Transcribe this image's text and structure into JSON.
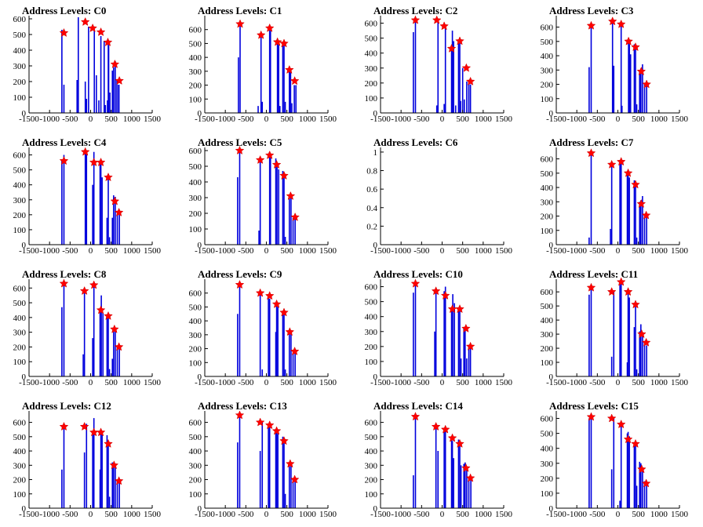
{
  "chart_data": [
    {
      "type": "bar",
      "title": "Address Levels: C0",
      "xlim": [
        -1500,
        1500
      ],
      "xticks": [
        -1500,
        -1000,
        -500,
        0,
        500,
        1000,
        1500
      ],
      "ylim": [
        0,
        620
      ],
      "yticks": [
        0,
        100,
        200,
        300,
        400,
        500,
        600
      ],
      "x": [
        -700,
        -650,
        -330,
        -300,
        -130,
        -100,
        -50,
        90,
        140,
        200,
        250,
        330,
        360,
        410,
        430,
        440,
        470,
        530,
        560,
        600,
        640,
        680,
        690
      ],
      "values": [
        530,
        180,
        210,
        610,
        200,
        90,
        550,
        530,
        240,
        80,
        490,
        460,
        50,
        80,
        460,
        430,
        130,
        270,
        290,
        330,
        210,
        180,
        180
      ],
      "stars": {
        "x": [
          -650,
          -130,
          50,
          250,
          420,
          590,
          700
        ],
        "y": [
          510,
          580,
          540,
          515,
          450,
          310,
          205
        ]
      }
    },
    {
      "type": "bar",
      "title": "Address Levels: C1",
      "xlim": [
        -1500,
        1500
      ],
      "xticks": [
        -1500,
        -1000,
        -500,
        0,
        500,
        1000,
        1500
      ],
      "ylim": [
        0,
        700
      ],
      "yticks": [
        0,
        100,
        200,
        300,
        400,
        500,
        600
      ],
      "x": [
        -680,
        -640,
        -200,
        -130,
        -100,
        80,
        100,
        270,
        300,
        330,
        400,
        430,
        460,
        560,
        590,
        620,
        680,
        720
      ],
      "values": [
        400,
        640,
        50,
        560,
        80,
        610,
        590,
        510,
        490,
        50,
        500,
        490,
        80,
        310,
        320,
        70,
        200,
        200
      ],
      "stars": {
        "x": [
          -640,
          -130,
          80,
          270,
          430,
          560,
          690
        ],
        "y": [
          640,
          560,
          610,
          510,
          500,
          310,
          230
        ]
      }
    },
    {
      "type": "bar",
      "title": "Address Levels: C2",
      "xlim": [
        -1500,
        1500
      ],
      "xticks": [
        -1500,
        -1000,
        -500,
        0,
        500,
        1000,
        1500
      ],
      "ylim": [
        0,
        650
      ],
      "yticks": [
        0,
        100,
        200,
        300,
        400,
        500,
        600
      ],
      "x": [
        -700,
        -650,
        -130,
        -100,
        50,
        80,
        230,
        250,
        280,
        330,
        400,
        430,
        450,
        500,
        540,
        600,
        650,
        690
      ],
      "values": [
        540,
        620,
        50,
        620,
        60,
        580,
        430,
        550,
        480,
        50,
        490,
        480,
        80,
        300,
        90,
        210,
        210,
        190
      ],
      "stars": {
        "x": [
          -650,
          -130,
          50,
          230,
          430,
          590,
          690
        ],
        "y": [
          620,
          620,
          580,
          430,
          480,
          300,
          210
        ]
      }
    },
    {
      "type": "bar",
      "title": "Address Levels: C3",
      "xlim": [
        -1500,
        1500
      ],
      "xticks": [
        -1500,
        -1000,
        -500,
        0,
        500,
        1000,
        1500
      ],
      "ylim": [
        0,
        680
      ],
      "yticks": [
        0,
        100,
        200,
        300,
        400,
        500,
        600
      ],
      "x": [
        -700,
        -650,
        -130,
        -100,
        80,
        100,
        260,
        280,
        310,
        400,
        430,
        460,
        530,
        560,
        600,
        650,
        700
      ],
      "values": [
        320,
        620,
        640,
        330,
        640,
        50,
        500,
        480,
        410,
        480,
        460,
        60,
        290,
        310,
        340,
        200,
        200
      ],
      "stars": {
        "x": [
          -650,
          -130,
          80,
          260,
          430,
          570,
          700
        ],
        "y": [
          610,
          640,
          620,
          500,
          460,
          290,
          200
        ]
      }
    },
    {
      "type": "bar",
      "title": "Address Levels: C4",
      "xlim": [
        -1500,
        1500
      ],
      "xticks": [
        -1500,
        -1000,
        -500,
        0,
        500,
        1000,
        1500
      ],
      "ylim": [
        0,
        650
      ],
      "yticks": [
        0,
        100,
        200,
        300,
        400,
        500,
        600
      ],
      "x": [
        -700,
        -650,
        -130,
        -100,
        50,
        80,
        230,
        250,
        280,
        400,
        430,
        460,
        530,
        560,
        600,
        650,
        700
      ],
      "values": [
        570,
        600,
        630,
        610,
        400,
        620,
        560,
        570,
        450,
        180,
        460,
        50,
        180,
        330,
        320,
        200,
        200
      ],
      "stars": {
        "x": [
          -650,
          -130,
          80,
          250,
          430,
          590,
          690
        ],
        "y": [
          560,
          620,
          550,
          550,
          450,
          290,
          215
        ]
      }
    },
    {
      "type": "bar",
      "title": "Address Levels: C5",
      "xlim": [
        -1500,
        1500
      ],
      "xticks": [
        -1500,
        -1000,
        -500,
        0,
        500,
        1000,
        1500
      ],
      "ylim": [
        0,
        620
      ],
      "yticks": [
        0,
        100,
        200,
        300,
        400,
        500,
        600
      ],
      "x": [
        -700,
        -650,
        -180,
        -150,
        80,
        100,
        230,
        260,
        300,
        400,
        430,
        460,
        560,
        600,
        650,
        700
      ],
      "values": [
        430,
        600,
        90,
        560,
        590,
        560,
        550,
        520,
        480,
        470,
        440,
        50,
        320,
        310,
        170,
        190
      ],
      "stars": {
        "x": [
          -650,
          -150,
          80,
          250,
          430,
          590,
          700
        ],
        "y": [
          600,
          540,
          570,
          510,
          440,
          310,
          175
        ]
      }
    },
    {
      "type": "empty",
      "title": "Address Levels: C6",
      "xlim": [
        -1500,
        1500
      ],
      "xticks": [
        -1500,
        -1000,
        -500,
        0,
        500,
        1000,
        1500
      ],
      "ylim": [
        0,
        1.05
      ],
      "yticks": [
        0,
        0.2,
        0.4,
        0.6,
        0.8,
        1
      ],
      "x": [],
      "values": [],
      "stars": {
        "x": [],
        "y": []
      }
    },
    {
      "type": "bar",
      "title": "Address Levels: C7",
      "xlim": [
        -1500,
        1500
      ],
      "xticks": [
        -1500,
        -1000,
        -500,
        0,
        500,
        1000,
        1500
      ],
      "ylim": [
        0,
        680
      ],
      "yticks": [
        0,
        100,
        200,
        300,
        400,
        500,
        600
      ],
      "x": [
        -700,
        -650,
        -180,
        -150,
        50,
        80,
        230,
        250,
        280,
        400,
        430,
        460,
        530,
        560,
        600,
        650,
        700
      ],
      "values": [
        50,
        650,
        110,
        560,
        580,
        590,
        500,
        510,
        470,
        450,
        420,
        50,
        300,
        310,
        340,
        200,
        200
      ],
      "stars": {
        "x": [
          -650,
          -150,
          80,
          250,
          430,
          570,
          690
        ],
        "y": [
          640,
          560,
          580,
          500,
          420,
          285,
          205
        ]
      }
    },
    {
      "type": "bar",
      "title": "Address Levels: C8",
      "xlim": [
        -1500,
        1500
      ],
      "xticks": [
        -1500,
        -1000,
        -500,
        0,
        500,
        1000,
        1500
      ],
      "ylim": [
        0,
        660
      ],
      "yticks": [
        0,
        100,
        200,
        300,
        400,
        500,
        600
      ],
      "x": [
        -700,
        -650,
        -180,
        -150,
        50,
        80,
        230,
        260,
        300,
        400,
        430,
        460,
        530,
        560,
        600,
        650,
        700
      ],
      "values": [
        470,
        640,
        150,
        590,
        260,
        620,
        440,
        550,
        430,
        410,
        420,
        50,
        120,
        330,
        320,
        200,
        200
      ],
      "stars": {
        "x": [
          -650,
          -150,
          80,
          250,
          430,
          580,
          690
        ],
        "y": [
          630,
          580,
          620,
          450,
          410,
          320,
          200
        ]
      }
    },
    {
      "type": "bar",
      "title": "Address Levels: C9",
      "xlim": [
        -1500,
        1500
      ],
      "xticks": [
        -1500,
        -1000,
        -500,
        0,
        500,
        1000,
        1500
      ],
      "ylim": [
        0,
        700
      ],
      "yticks": [
        0,
        100,
        200,
        300,
        400,
        500,
        600
      ],
      "x": [
        -700,
        -650,
        -150,
        -100,
        50,
        80,
        230,
        250,
        280,
        400,
        430,
        460,
        560,
        600,
        650,
        700
      ],
      "values": [
        450,
        660,
        600,
        50,
        580,
        560,
        320,
        520,
        500,
        460,
        460,
        50,
        330,
        320,
        170,
        180
      ],
      "stars": {
        "x": [
          -650,
          -150,
          80,
          250,
          430,
          570,
          690
        ],
        "y": [
          660,
          600,
          580,
          520,
          460,
          320,
          180
        ]
      }
    },
    {
      "type": "bar",
      "title": "Address Levels: C10",
      "xlim": [
        -1500,
        1500
      ],
      "xticks": [
        -1500,
        -1000,
        -500,
        0,
        500,
        1000,
        1500
      ],
      "ylim": [
        0,
        650
      ],
      "yticks": [
        0,
        100,
        200,
        300,
        400,
        500,
        600
      ],
      "x": [
        -700,
        -650,
        -180,
        -150,
        50,
        80,
        230,
        260,
        300,
        400,
        430,
        460,
        530,
        560,
        600,
        650,
        690
      ],
      "values": [
        560,
        620,
        300,
        570,
        570,
        600,
        440,
        550,
        490,
        440,
        460,
        120,
        320,
        330,
        120,
        210,
        200
      ],
      "stars": {
        "x": [
          -650,
          -150,
          80,
          250,
          430,
          580,
          690
        ],
        "y": [
          620,
          570,
          540,
          450,
          450,
          320,
          200
        ]
      }
    },
    {
      "type": "bar",
      "title": "Address Levels: C11",
      "xlim": [
        -1500,
        1500
      ],
      "xticks": [
        -1500,
        -1000,
        -500,
        0,
        500,
        1000,
        1500
      ],
      "ylim": [
        0,
        690
      ],
      "yticks": [
        0,
        100,
        200,
        300,
        400,
        500,
        600
      ],
      "x": [
        -700,
        -650,
        -150,
        -100,
        50,
        80,
        230,
        250,
        280,
        400,
        430,
        460,
        530,
        560,
        600,
        650,
        700
      ],
      "values": [
        580,
        640,
        140,
        600,
        650,
        680,
        100,
        600,
        560,
        350,
        510,
        50,
        320,
        370,
        300,
        250,
        220
      ],
      "stars": {
        "x": [
          -650,
          -150,
          80,
          250,
          430,
          580,
          690
        ],
        "y": [
          630,
          600,
          670,
          600,
          510,
          300,
          240
        ]
      }
    },
    {
      "type": "bar",
      "title": "Address Levels: C12",
      "xlim": [
        -1500,
        1500
      ],
      "xticks": [
        -1500,
        -1000,
        -500,
        0,
        500,
        1000,
        1500
      ],
      "ylim": [
        0,
        680
      ],
      "yticks": [
        0,
        100,
        200,
        300,
        400,
        500,
        600
      ],
      "x": [
        -700,
        -650,
        -150,
        -100,
        50,
        80,
        230,
        250,
        280,
        400,
        430,
        460,
        530,
        560,
        600,
        650,
        700
      ],
      "values": [
        270,
        560,
        390,
        590,
        540,
        630,
        270,
        540,
        520,
        510,
        450,
        80,
        320,
        300,
        310,
        200,
        200
      ],
      "stars": {
        "x": [
          -650,
          -150,
          80,
          250,
          430,
          570,
          690
        ],
        "y": [
          570,
          570,
          530,
          530,
          450,
          300,
          190
        ]
      }
    },
    {
      "type": "bar",
      "title": "Address Levels: C13",
      "xlim": [
        -1500,
        1500
      ],
      "xticks": [
        -1500,
        -1000,
        -500,
        0,
        500,
        1000,
        1500
      ],
      "ylim": [
        0,
        680
      ],
      "yticks": [
        0,
        100,
        200,
        300,
        400,
        500,
        600
      ],
      "x": [
        -700,
        -650,
        -150,
        -100,
        50,
        80,
        230,
        250,
        280,
        400,
        430,
        460,
        560,
        600,
        650,
        700
      ],
      "values": [
        460,
        660,
        400,
        600,
        580,
        580,
        530,
        540,
        520,
        500,
        470,
        100,
        320,
        300,
        200,
        200
      ],
      "stars": {
        "x": [
          -650,
          -150,
          80,
          250,
          430,
          580,
          690
        ],
        "y": [
          650,
          600,
          580,
          540,
          470,
          310,
          200
        ]
      }
    },
    {
      "type": "bar",
      "title": "Address Levels: C14",
      "xlim": [
        -1500,
        1500
      ],
      "xticks": [
        -1500,
        -1000,
        -500,
        0,
        500,
        1000,
        1500
      ],
      "ylim": [
        0,
        680
      ],
      "yticks": [
        0,
        100,
        200,
        300,
        400,
        500,
        600
      ],
      "x": [
        -700,
        -650,
        -150,
        -100,
        50,
        80,
        230,
        250,
        280,
        400,
        430,
        460,
        530,
        560,
        600,
        650,
        700
      ],
      "values": [
        230,
        640,
        570,
        400,
        560,
        540,
        490,
        470,
        350,
        480,
        440,
        300,
        310,
        320,
        290,
        210,
        200
      ],
      "stars": {
        "x": [
          -650,
          -150,
          80,
          250,
          430,
          580,
          690
        ],
        "y": [
          640,
          570,
          550,
          490,
          450,
          280,
          210
        ]
      }
    },
    {
      "type": "bar",
      "title": "Address Levels: C15",
      "xlim": [
        -1500,
        1500
      ],
      "xticks": [
        -1500,
        -1000,
        -500,
        0,
        500,
        1000,
        1500
      ],
      "ylim": [
        0,
        650
      ],
      "yticks": [
        0,
        100,
        200,
        300,
        400,
        500,
        600
      ],
      "x": [
        -700,
        -650,
        -150,
        -100,
        50,
        80,
        230,
        250,
        280,
        400,
        430,
        460,
        530,
        560,
        600,
        650,
        700
      ],
      "values": [
        600,
        610,
        260,
        610,
        50,
        560,
        500,
        510,
        480,
        440,
        420,
        150,
        310,
        300,
        250,
        180,
        170
      ],
      "stars": {
        "x": [
          -650,
          -150,
          80,
          250,
          430,
          580,
          690
        ],
        "y": [
          610,
          600,
          560,
          460,
          430,
          260,
          165
        ]
      }
    }
  ],
  "colors": {
    "bars": "#0000dd",
    "stars": "#ff0000",
    "axis": "#000000"
  }
}
